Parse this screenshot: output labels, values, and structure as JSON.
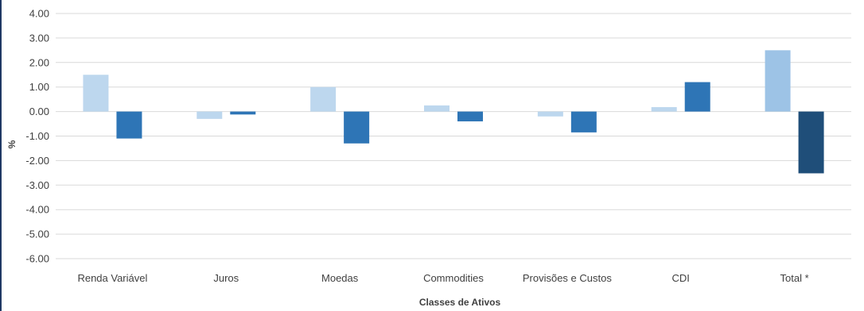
{
  "chart_data": {
    "type": "bar",
    "title": "",
    "xlabel": "Classes de Ativos",
    "ylabel": "%",
    "ylim": [
      -6,
      4
    ],
    "yticks": [
      4,
      3,
      2,
      1,
      0,
      -1,
      -2,
      -3,
      -4,
      -5,
      -6
    ],
    "ytick_labels": [
      "4.00",
      "3.00",
      "2.00",
      "1.00",
      "0.00",
      "-1.00",
      "-2.00",
      "-3.00",
      "-4.00",
      "-5.00",
      "-6.00"
    ],
    "grid": true,
    "legend": "none",
    "categories": [
      "Renda Variável",
      "Juros",
      "Moedas",
      "Commodities",
      "Provisões e Custos",
      "CDI",
      "Total *"
    ],
    "series": [
      {
        "values": [
          1.5,
          -0.3,
          1.0,
          0.25,
          -0.2,
          0.18,
          2.5
        ],
        "colors": [
          "#bdd7ee",
          "#bdd7ee",
          "#bdd7ee",
          "#bdd7ee",
          "#bdd7ee",
          "#bdd7ee",
          "#9dc3e6"
        ]
      },
      {
        "values": [
          -1.1,
          -0.12,
          -1.3,
          -0.4,
          -0.85,
          1.2,
          -2.52
        ],
        "colors": [
          "#2e75b6",
          "#2e75b6",
          "#2e75b6",
          "#2e75b6",
          "#2e75b6",
          "#2e75b6",
          "#1f4e79"
        ]
      }
    ]
  }
}
